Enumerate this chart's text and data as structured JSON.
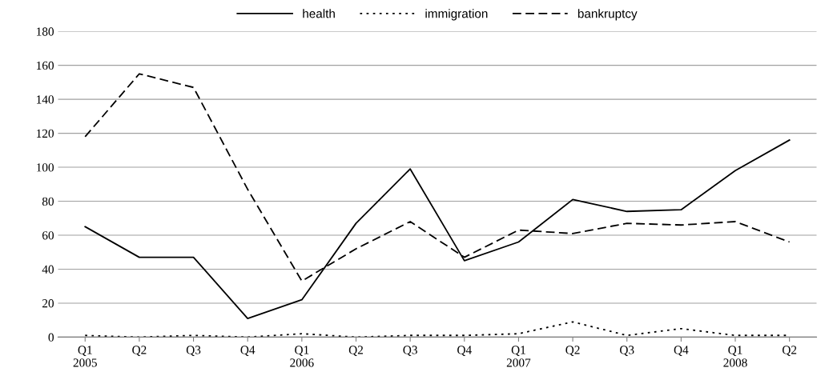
{
  "chart_data": {
    "type": "line",
    "categories": [
      "Q1\n2005",
      "Q2",
      "Q3",
      "Q4",
      "Q1\n2006",
      "Q2",
      "Q3",
      "Q4",
      "Q1\n2007",
      "Q2",
      "Q3",
      "Q4",
      "Q1\n2008",
      "Q2"
    ],
    "series": [
      {
        "name": "health",
        "color": "#000000",
        "line_style": "solid",
        "values": [
          65,
          47,
          47,
          11,
          22,
          67,
          99,
          45,
          56,
          81,
          74,
          75,
          98,
          116
        ]
      },
      {
        "name": "immigration",
        "color": "#000000",
        "line_style": "dotted",
        "values": [
          1,
          0,
          1,
          0,
          2,
          0,
          1,
          1,
          2,
          9,
          1,
          5,
          1,
          1
        ]
      },
      {
        "name": "bankruptcy",
        "color": "#000000",
        "line_style": "dashed",
        "values": [
          118,
          155,
          147,
          87,
          33,
          52,
          68,
          47,
          63,
          61,
          67,
          66,
          68,
          56
        ]
      }
    ],
    "ylim": [
      0,
      180
    ],
    "yticks": [
      0,
      20,
      40,
      60,
      80,
      100,
      120,
      140,
      160,
      180
    ],
    "grid": "y",
    "legend": "top",
    "marker": "none"
  }
}
